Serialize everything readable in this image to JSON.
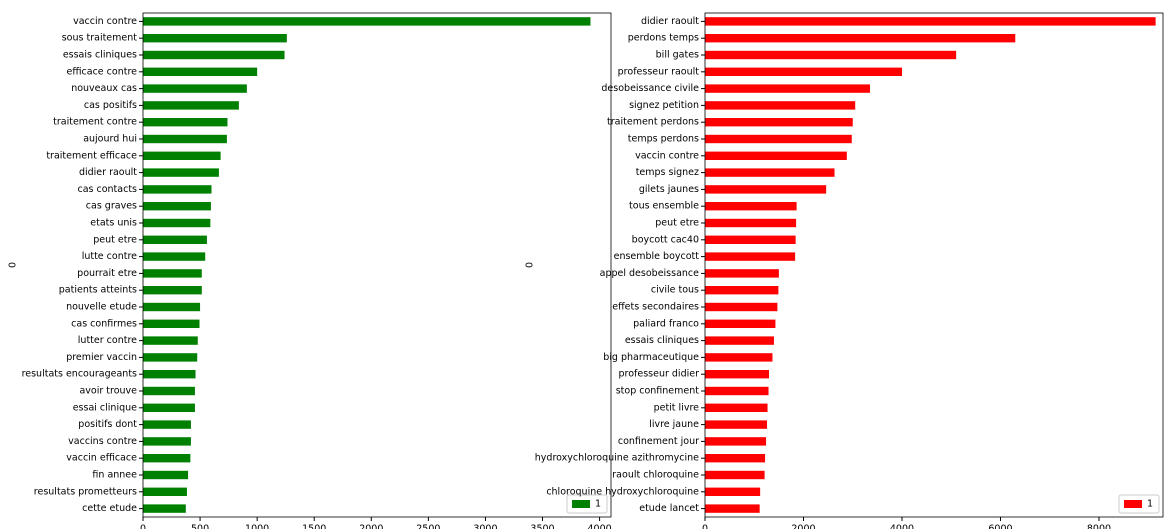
{
  "chart_data": [
    {
      "type": "bar",
      "orientation": "horizontal",
      "ylabel": "0",
      "xlim": [
        0,
        4100
      ],
      "xticks": [
        0,
        500,
        1000,
        1500,
        2000,
        2500,
        3000,
        3500,
        4000
      ],
      "legend": {
        "label": "1",
        "position": "bottom-right"
      },
      "color": "#008000",
      "categories": [
        "vaccin contre",
        "sous traitement",
        "essais cliniques",
        "efficace contre",
        "nouveaux cas",
        "cas positifs",
        "traitement contre",
        "aujourd hui",
        "traitement efficace",
        "didier raoult",
        "cas contacts",
        "cas graves",
        "etats unis",
        "peut etre",
        "lutte contre",
        "pourrait etre",
        "patients atteints",
        "nouvelle etude",
        "cas confirmes",
        "lutter contre",
        "premier vaccin",
        "resultats encourageants",
        "avoir trouve",
        "essai clinique",
        "positifs dont",
        "vaccins contre",
        "vaccin efficace",
        "fin annee",
        "resultats prometteurs",
        "cette etude"
      ],
      "values": [
        3920,
        1260,
        1240,
        1000,
        910,
        840,
        740,
        735,
        680,
        665,
        600,
        595,
        590,
        560,
        545,
        515,
        515,
        500,
        495,
        480,
        475,
        460,
        455,
        455,
        420,
        420,
        415,
        395,
        385,
        375
      ]
    },
    {
      "type": "bar",
      "orientation": "horizontal",
      "ylabel": "0",
      "xlim": [
        0,
        9300
      ],
      "xticks": [
        0,
        2000,
        4000,
        6000,
        8000
      ],
      "legend": {
        "label": "1",
        "position": "bottom-right"
      },
      "color": "#ff0000",
      "categories": [
        "didier raoult",
        "perdons temps",
        "bill gates",
        "professeur raoult",
        "desobeissance civile",
        "signez petition",
        "traitement perdons",
        "temps perdons",
        "vaccin contre",
        "temps signez",
        "gilets jaunes",
        "tous ensemble",
        "peut etre",
        "boycott cac40",
        "ensemble boycott",
        "appel desobeissance",
        "civile tous",
        "effets secondaires",
        "paliard franco",
        "essais cliniques",
        "big pharmaceutique",
        "professeur didier",
        "stop confinement",
        "petit livre",
        "livre jaune",
        "confinement jour",
        "hydroxychloroquine azithromycine",
        "raoult chloroquine",
        "chloroquine hydroxychloroquine",
        "etude lancet"
      ],
      "values": [
        9150,
        6300,
        5100,
        4000,
        3350,
        3050,
        3000,
        2980,
        2880,
        2630,
        2460,
        1860,
        1850,
        1840,
        1830,
        1500,
        1490,
        1470,
        1430,
        1400,
        1370,
        1300,
        1290,
        1270,
        1260,
        1240,
        1220,
        1210,
        1120,
        1110
      ]
    }
  ]
}
